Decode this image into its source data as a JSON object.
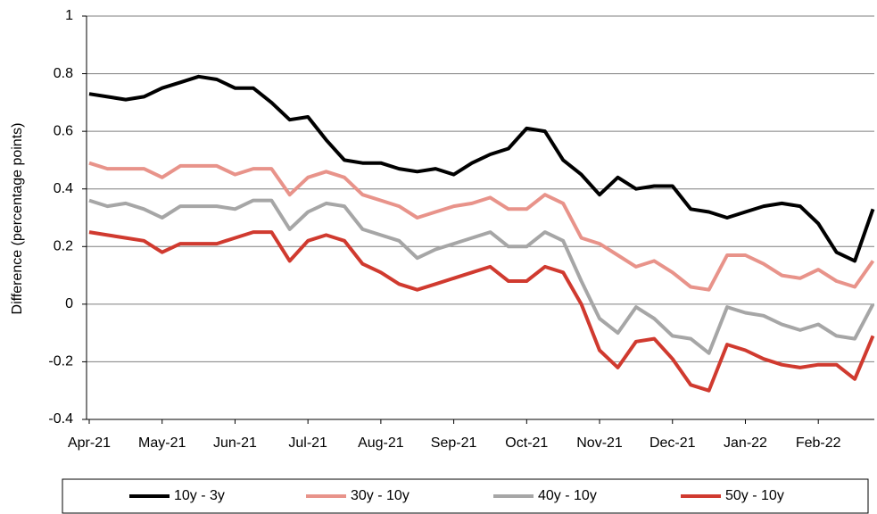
{
  "chart_data": {
    "type": "line",
    "y_label": "Difference (percentage points)",
    "categories": [
      "Apr-21",
      null,
      null,
      null,
      "May-21",
      null,
      null,
      null,
      "Jun-21",
      null,
      null,
      null,
      "Jul-21",
      null,
      null,
      null,
      "Aug-21",
      null,
      null,
      null,
      "Sep-21",
      null,
      null,
      null,
      "Oct-21",
      null,
      null,
      null,
      "Nov-21",
      null,
      null,
      null,
      "Dec-21",
      null,
      null,
      null,
      "Jan-22",
      null,
      null,
      null,
      "Feb-22",
      null,
      null,
      null
    ],
    "series": [
      {
        "name": "10y - 3y",
        "color": "#000000",
        "values": [
          0.73,
          0.72,
          0.71,
          0.72,
          0.75,
          0.77,
          0.79,
          0.78,
          0.75,
          0.75,
          0.7,
          0.64,
          0.65,
          0.57,
          0.5,
          0.49,
          0.49,
          0.47,
          0.46,
          0.47,
          0.45,
          0.49,
          0.52,
          0.54,
          0.61,
          0.6,
          0.5,
          0.45,
          0.38,
          0.44,
          0.4,
          0.41,
          0.41,
          0.33,
          0.32,
          0.3,
          0.32,
          0.34,
          0.35,
          0.34,
          0.28,
          0.18,
          0.15,
          0.33
        ]
      },
      {
        "name": "30y - 10y",
        "color": "#e8938a",
        "values": [
          0.49,
          0.47,
          0.47,
          0.47,
          0.44,
          0.48,
          0.48,
          0.48,
          0.45,
          0.47,
          0.47,
          0.38,
          0.44,
          0.46,
          0.44,
          0.38,
          0.36,
          0.34,
          0.3,
          0.32,
          0.34,
          0.35,
          0.37,
          0.33,
          0.33,
          0.38,
          0.35,
          0.23,
          0.21,
          0.17,
          0.13,
          0.15,
          0.11,
          0.06,
          0.05,
          0.17,
          0.17,
          0.14,
          0.1,
          0.09,
          0.12,
          0.08,
          0.06,
          0.15
        ]
      },
      {
        "name": "40y - 10y",
        "color": "#a6a6a6",
        "values": [
          0.36,
          0.34,
          0.35,
          0.33,
          0.3,
          0.34,
          0.34,
          0.34,
          0.33,
          0.36,
          0.36,
          0.26,
          0.32,
          0.35,
          0.34,
          0.26,
          0.24,
          0.22,
          0.16,
          0.19,
          0.21,
          0.23,
          0.25,
          0.2,
          0.2,
          0.25,
          0.22,
          0.08,
          -0.05,
          -0.1,
          -0.01,
          -0.05,
          -0.11,
          -0.12,
          -0.17,
          -0.01,
          -0.03,
          -0.04,
          -0.07,
          -0.09,
          -0.07,
          -0.11,
          -0.12,
          0.0
        ]
      },
      {
        "name": "50y - 10y",
        "color": "#d03a2f",
        "values": [
          0.25,
          0.24,
          0.23,
          0.22,
          0.18,
          0.21,
          0.21,
          0.21,
          0.23,
          0.25,
          0.25,
          0.15,
          0.22,
          0.24,
          0.22,
          0.14,
          0.11,
          0.07,
          0.05,
          0.07,
          0.09,
          0.11,
          0.13,
          0.08,
          0.08,
          0.13,
          0.11,
          0.0,
          -0.16,
          -0.22,
          -0.13,
          -0.12,
          -0.19,
          -0.28,
          -0.3,
          -0.14,
          -0.16,
          -0.19,
          -0.21,
          -0.22,
          -0.21,
          -0.21,
          -0.26,
          -0.11
        ]
      }
    ],
    "ylim": [
      -0.4,
      1
    ],
    "yticks": [
      -0.4,
      -0.2,
      0,
      0.2,
      0.4,
      0.6,
      0.8,
      1
    ],
    "grid": true,
    "legend": "bottom"
  }
}
